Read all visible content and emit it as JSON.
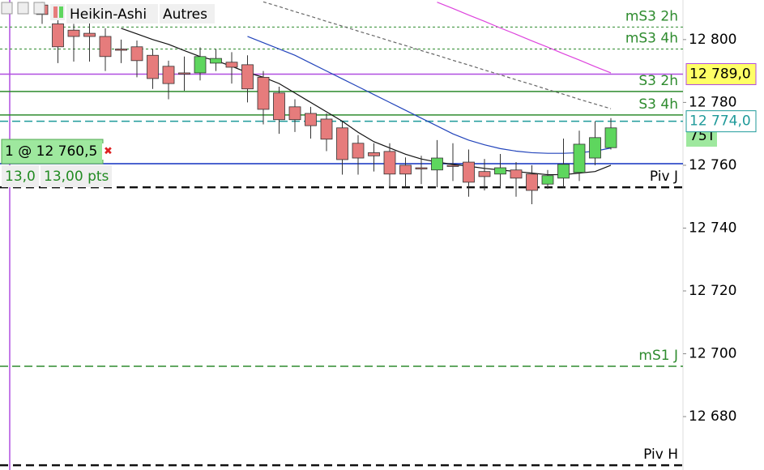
{
  "chart_data": {
    "type": "candlestick",
    "toolbar": {
      "chart_style": "Heikin-Ashi",
      "menu": "Autres"
    },
    "position": {
      "label": "1 @ 12 760,5",
      "qty": "13,0",
      "points": "13,00 pts"
    },
    "tick_size": "75T",
    "up_color": "#5ed65e",
    "down_color": "#e67c7c",
    "categories": [
      null,
      null,
      null,
      null,
      null,
      null,
      null,
      null,
      null,
      null,
      null,
      null,
      null,
      null,
      null,
      null,
      null,
      null,
      null,
      null,
      null,
      null,
      null,
      null,
      null,
      null,
      null,
      null,
      null,
      null,
      null,
      null,
      null,
      null,
      null,
      null,
      null
    ],
    "open": [
      12811,
      12805,
      12803,
      12802,
      12801,
      12797,
      12797.7,
      12795,
      12791.5,
      12789.4,
      12789.4,
      12792.5,
      12792.8,
      12792,
      12788,
      12783,
      12778.6,
      12776.5,
      12774.7,
      12771.9,
      12767,
      12764,
      12764.4,
      12760,
      12759.2,
      12758.5,
      12760,
      12761,
      12758,
      12757.2,
      12758.5,
      12757.2,
      12754,
      12755.9,
      12757.7,
      12762.3,
      12765.6
    ],
    "high": [
      12812,
      12807.5,
      12805,
      12805.5,
      12803.6,
      12800,
      12799.7,
      12797,
      12793.3,
      12794.6,
      12797.5,
      12797,
      12796,
      12795,
      12790,
      12785,
      12781,
      12778.6,
      12776.5,
      12774,
      12769.6,
      12767,
      12767,
      12762.5,
      12763,
      12768,
      12767,
      12765,
      12762,
      12763.6,
      12761,
      12760,
      12758.5,
      12768.5,
      12771,
      12774,
      12775
    ],
    "low": [
      12805,
      12792.5,
      12793,
      12793,
      12790,
      12792.5,
      12788,
      12784.3,
      12781,
      12783.7,
      12787,
      12790,
      12786,
      12780,
      12773,
      12770,
      12770.6,
      12768.5,
      12764.5,
      12757,
      12757,
      12758,
      12753,
      12753,
      12754,
      12753,
      12755,
      12750,
      12752,
      12753,
      12750,
      12747.6,
      12752.5,
      12753,
      12755,
      12760,
      12765
    ],
    "close": [
      12808,
      12797.7,
      12801,
      12801,
      12794.6,
      12796.6,
      12793.3,
      12787.6,
      12786,
      12789,
      12794.6,
      12794,
      12791.2,
      12784.3,
      12777.8,
      12774.5,
      12774.5,
      12772.6,
      12768.3,
      12761.8,
      12762.3,
      12763,
      12757.2,
      12757.2,
      12759,
      12762.3,
      12759.7,
      12754.6,
      12756.4,
      12759.2,
      12755.9,
      12752,
      12756.7,
      12760.3,
      12766.7,
      12768.8,
      12771.9
    ],
    "indicators": [
      {
        "color": "#111111",
        "dash": false,
        "values": [
          null,
          null,
          null,
          null,
          null,
          12803.6,
          12801.8,
          12800,
          12798.5,
          12796.5,
          12794.6,
          12793.3,
          12791.5,
          12789.5,
          12788,
          12786,
          12783,
          12780,
          12777,
          12774,
          12770.5,
          12767.5,
          12765.5,
          12763.5,
          12762,
          12761,
          12760.3,
          12759.7,
          12759,
          12758.5,
          12758,
          12757.5,
          12757,
          12757,
          12757.5,
          12758,
          12760
        ]
      },
      {
        "color": "#2244bb",
        "dash": false,
        "values": [
          null,
          null,
          null,
          null,
          null,
          null,
          null,
          null,
          null,
          null,
          null,
          null,
          null,
          12801,
          12799,
          12797,
          12795,
          12792.5,
          12790,
          12787.5,
          12785,
          12782.5,
          12780,
          12777.5,
          12775,
          12772.5,
          12770,
          12768,
          12766.5,
          12765.3,
          12764.5,
          12764,
          12763.8,
          12763.8,
          12764,
          12764.5,
          12765.5
        ]
      },
      {
        "color": "#dd44dd",
        "dash": false,
        "values": [
          null,
          null,
          null,
          null,
          null,
          null,
          null,
          null,
          null,
          null,
          null,
          null,
          null,
          null,
          null,
          null,
          null,
          null,
          null,
          null,
          null,
          null,
          null,
          null,
          null,
          12811.9,
          12809.9,
          12807.8,
          12805.8,
          12803.7,
          12801.7,
          12799.6,
          12797.6,
          12795.5,
          12793.5,
          12791.4,
          12789.4
        ]
      },
      {
        "color": "#666666",
        "dash": true,
        "values": [
          null,
          null,
          null,
          null,
          null,
          null,
          null,
          null,
          null,
          null,
          null,
          null,
          null,
          null,
          12812,
          12810.5,
          12808.9,
          12807.4,
          12805.8,
          12804.3,
          12802.7,
          12801.2,
          12799.6,
          12798.1,
          12796.5,
          12795,
          12793.4,
          12791.9,
          12790.3,
          12788.8,
          12787.2,
          12785.7,
          12784.1,
          12782.6,
          12781,
          12779.5,
          12778
        ]
      }
    ],
    "levels": [
      {
        "name": "mS3 2h",
        "value": 12804,
        "color": "#2e8b2e",
        "style": "dotted"
      },
      {
        "name": "mS3 4h",
        "value": 12797,
        "color": "#2e8b2e",
        "style": "dotted"
      },
      {
        "value": 12789,
        "label": "12 789,0",
        "color": "#b04ee0",
        "style": "solid",
        "label_bg": "#ffff66"
      },
      {
        "name": "S3 2h",
        "value": 12783.5,
        "color": "#2e8b2e",
        "style": "solid"
      },
      {
        "name": "S3 4h",
        "value": 12776,
        "color": "#2e8b2e",
        "style": "solid"
      },
      {
        "value": 12774,
        "label": "12 774,0",
        "color": "#1f9a9a",
        "style": "dashed",
        "label_bg": "#ffffff"
      },
      {
        "value": 12760.5,
        "color": "#1030c0",
        "style": "solid"
      },
      {
        "name": "Piv J",
        "value": 12753,
        "color": "#111111",
        "style": "bold-dashed"
      },
      {
        "name": "mS1 J",
        "value": 12696,
        "color": "#2e8b2e",
        "style": "dashed"
      },
      {
        "name": "Piv H",
        "value": 12664.5,
        "color": "#111111",
        "style": "bold-dashed"
      }
    ],
    "ylim": [
      12663,
      12812.6
    ],
    "yticks": [
      {
        "value": 12680,
        "label": "12 680"
      },
      {
        "value": 12700,
        "label": "12 700"
      },
      {
        "value": 12720,
        "label": "12 720"
      },
      {
        "value": 12740,
        "label": "12 740"
      },
      {
        "value": 12760,
        "label": "12 760"
      },
      {
        "value": 12780,
        "label": "12 780"
      },
      {
        "value": 12800,
        "label": "12 800"
      }
    ]
  }
}
